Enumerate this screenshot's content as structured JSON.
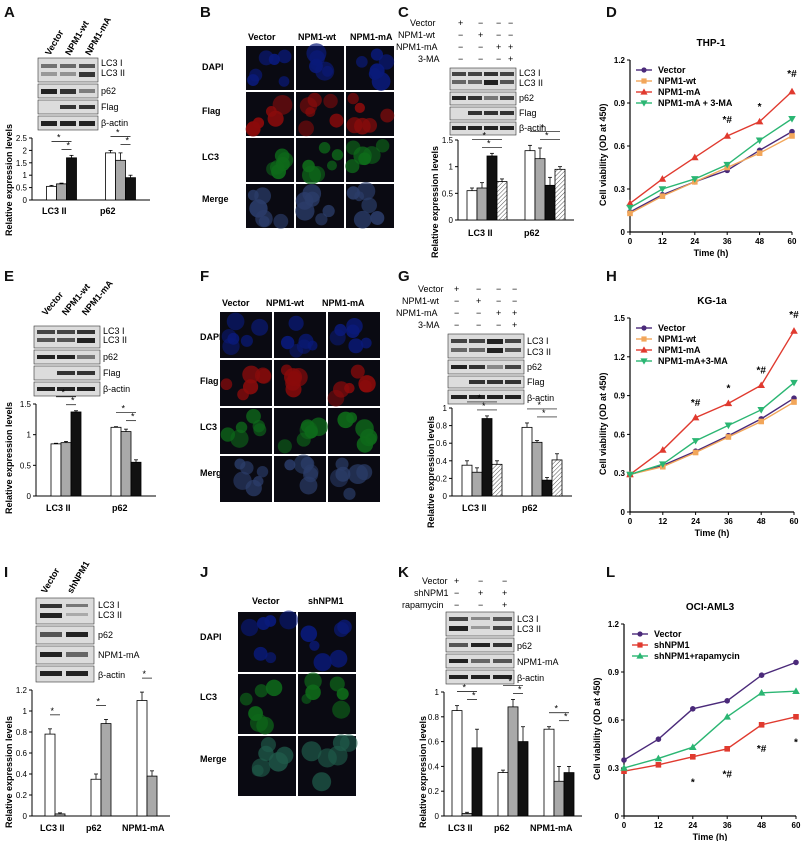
{
  "figure": {
    "panels": {
      "A": {
        "label": "A",
        "lanes": [
          "Vector",
          "NPM1-wt",
          "NPM1-mA"
        ],
        "blots": [
          "LC3 I",
          "LC3 II",
          "p62",
          "Flag",
          "β-actin"
        ],
        "ylabel": "Relative expression levels",
        "groups": [
          "LC3 II",
          "p62"
        ]
      },
      "B": {
        "label": "B",
        "cols": [
          "Vector",
          "NPM1-wt",
          "NPM1-mA"
        ],
        "rows": [
          "DAPI",
          "Flag",
          "LC3",
          "Merge"
        ]
      },
      "C": {
        "label": "C",
        "conds": [
          "Vector",
          "NPM1-wt",
          "NPM1-mA",
          "3-MA"
        ],
        "blots": [
          "LC3 I",
          "LC3 II",
          "p62",
          "Flag",
          "β-actin"
        ],
        "ylabel": "Relative expression levels",
        "groups": [
          "LC3 II",
          "p62"
        ]
      },
      "D": {
        "label": "D"
      },
      "E": {
        "label": "E",
        "lanes": [
          "Vector",
          "NPM1-wt",
          "NPM1-mA"
        ],
        "blots": [
          "LC3 I",
          "LC3 II",
          "p62",
          "Flag",
          "β-actin"
        ],
        "ylabel": "Relative expression levels",
        "groups": [
          "LC3 II",
          "p62"
        ]
      },
      "F": {
        "label": "F",
        "cols": [
          "Vector",
          "NPM1-wt",
          "NPM1-mA"
        ],
        "rows": [
          "DAPI",
          "Flag",
          "LC3",
          "Merge"
        ]
      },
      "G": {
        "label": "G",
        "conds": [
          "Vector",
          "NPM1-wt",
          "NPM1-mA",
          "3-MA"
        ],
        "blots": [
          "LC3 I",
          "LC3 II",
          "p62",
          "Flag",
          "β-actin"
        ],
        "ylabel": "Relative expression levels",
        "groups": [
          "LC3 II",
          "p62"
        ]
      },
      "H": {
        "label": "H"
      },
      "I": {
        "label": "I",
        "lanes": [
          "Vector",
          "shNPM1"
        ],
        "blots": [
          "LC3 I",
          "LC3 II",
          "p62",
          "NPM1-mA",
          "β-actin"
        ],
        "ylabel": "Relative expression levels",
        "groups": [
          "LC3 II",
          "p62",
          "NPM1-mA"
        ]
      },
      "J": {
        "label": "J",
        "cols": [
          "Vector",
          "shNPM1"
        ],
        "rows": [
          "DAPI",
          "LC3",
          "Merge"
        ]
      },
      "K": {
        "label": "K",
        "conds": [
          "Vector",
          "shNPM1",
          "rapamycin"
        ],
        "blots": [
          "LC3 I",
          "LC3 II",
          "p62",
          "NPM1-mA",
          "β-actin"
        ],
        "ylabel": "Relative expression levels",
        "groups": [
          "LC3 II",
          "p62",
          "NPM1-mA"
        ]
      },
      "L": {
        "label": "L"
      }
    },
    "sig": {
      "star": "*",
      "hash": "#",
      "starhash": "*#"
    }
  },
  "chart_data": [
    {
      "id": "A",
      "type": "bar",
      "categories": [
        "LC3 II",
        "p62"
      ],
      "series": [
        {
          "name": "Vector",
          "values": [
            0.55,
            1.9
          ],
          "err": [
            0.04,
            0.1
          ]
        },
        {
          "name": "NPM1-wt",
          "values": [
            0.65,
            1.6
          ],
          "err": [
            0.03,
            0.3
          ]
        },
        {
          "name": "NPM1-mA",
          "values": [
            1.7,
            0.9
          ],
          "err": [
            0.1,
            0.1
          ]
        }
      ],
      "ylabel": "Relative expression levels",
      "ylim": [
        0,
        2.5
      ],
      "yticks": [
        0,
        0.5,
        1,
        1.5,
        2,
        2.5
      ]
    },
    {
      "id": "C",
      "type": "bar",
      "categories": [
        "LC3 II",
        "p62"
      ],
      "series": [
        {
          "name": "Vector",
          "values": [
            0.55,
            1.3
          ],
          "err": [
            0.05,
            0.1
          ]
        },
        {
          "name": "NPM1-wt",
          "values": [
            0.6,
            1.15
          ],
          "err": [
            0.1,
            0.2
          ]
        },
        {
          "name": "NPM1-mA",
          "values": [
            1.2,
            0.65
          ],
          "err": [
            0.05,
            0.15
          ]
        },
        {
          "name": "NPM1-mA + 3-MA",
          "values": [
            0.72,
            0.95
          ],
          "err": [
            0.05,
            0.05
          ]
        }
      ],
      "ylabel": "Relative expression levels",
      "ylim": [
        0,
        1.5
      ],
      "yticks": [
        0,
        0.5,
        1,
        1.5
      ]
    },
    {
      "id": "E",
      "type": "bar",
      "categories": [
        "LC3 II",
        "p62"
      ],
      "series": [
        {
          "name": "Vector",
          "values": [
            0.85,
            1.12
          ],
          "err": [
            0.01,
            0.01
          ]
        },
        {
          "name": "NPM1-wt",
          "values": [
            0.87,
            1.05
          ],
          "err": [
            0.02,
            0.04
          ]
        },
        {
          "name": "NPM1-mA",
          "values": [
            1.37,
            0.55
          ],
          "err": [
            0.02,
            0.04
          ]
        }
      ],
      "ylabel": "Relative expression levels",
      "ylim": [
        0,
        1.5
      ],
      "yticks": [
        0,
        0.5,
        1,
        1.5
      ]
    },
    {
      "id": "G",
      "type": "bar",
      "categories": [
        "LC3 II",
        "p62"
      ],
      "series": [
        {
          "name": "Vector",
          "values": [
            0.35,
            0.78
          ],
          "err": [
            0.05,
            0.05
          ]
        },
        {
          "name": "NPM1-wt",
          "values": [
            0.27,
            0.61
          ],
          "err": [
            0.05,
            0.02
          ]
        },
        {
          "name": "NPM1-mA",
          "values": [
            0.88,
            0.18
          ],
          "err": [
            0.03,
            0.03
          ]
        },
        {
          "name": "NPM1-mA + 3-MA",
          "values": [
            0.36,
            0.41
          ],
          "err": [
            0.04,
            0.07
          ]
        }
      ],
      "ylabel": "Relative expression levels",
      "ylim": [
        0,
        1.0
      ],
      "yticks": [
        0,
        0.2,
        0.4,
        0.6,
        0.8,
        1.0
      ]
    },
    {
      "id": "I",
      "type": "bar",
      "categories": [
        "LC3 II",
        "p62",
        "NPM1-mA"
      ],
      "series": [
        {
          "name": "Vector",
          "values": [
            0.78,
            0.35,
            1.1
          ],
          "err": [
            0.05,
            0.05,
            0.08
          ]
        },
        {
          "name": "shNPM1",
          "values": [
            0.02,
            0.88,
            0.38
          ],
          "err": [
            0.01,
            0.04,
            0.05
          ]
        }
      ],
      "ylabel": "Relative expression levels",
      "ylim": [
        0,
        1.2
      ],
      "yticks": [
        0,
        0.2,
        0.4,
        0.6,
        0.8,
        1.0,
        1.2
      ]
    },
    {
      "id": "K",
      "type": "bar",
      "categories": [
        "LC3 II",
        "p62",
        "NPM1-mA"
      ],
      "series": [
        {
          "name": "Vector",
          "values": [
            0.85,
            0.35,
            0.7
          ],
          "err": [
            0.04,
            0.02,
            0.02
          ]
        },
        {
          "name": "shNPM1",
          "values": [
            0.02,
            0.88,
            0.28
          ],
          "err": [
            0.01,
            0.06,
            0.12
          ]
        },
        {
          "name": "shNPM1 + rapamycin",
          "values": [
            0.55,
            0.6,
            0.35
          ],
          "err": [
            0.15,
            0.12,
            0.05
          ]
        }
      ],
      "ylabel": "Relative expression levels",
      "ylim": [
        0,
        1.0
      ],
      "yticks": [
        0,
        0.2,
        0.4,
        0.6,
        0.8,
        1.0
      ]
    },
    {
      "id": "D",
      "type": "line",
      "title": "THP-1",
      "xlabel": "Time (h)",
      "ylabel": "Cell viability (OD at 450)",
      "x": [
        0,
        12,
        24,
        36,
        48,
        60
      ],
      "xticks": [
        0,
        12,
        24,
        36,
        48,
        60
      ],
      "ylim": [
        0,
        1.2
      ],
      "yticks": [
        0,
        0.3,
        0.6,
        0.9,
        1.2
      ],
      "series": [
        {
          "name": "Vector",
          "color": "#4b2a7a",
          "marker": "circle",
          "values": [
            0.14,
            0.26,
            0.35,
            0.43,
            0.57,
            0.7
          ]
        },
        {
          "name": "NPM1-wt",
          "color": "#f2a65a",
          "marker": "square",
          "values": [
            0.13,
            0.25,
            0.35,
            0.45,
            0.55,
            0.67
          ]
        },
        {
          "name": "NPM1-mA",
          "color": "#e03a2f",
          "marker": "triangle",
          "values": [
            0.2,
            0.37,
            0.52,
            0.67,
            0.77,
            0.98
          ]
        },
        {
          "name": "NPM1-mA + 3-MA",
          "color": "#2bb673",
          "marker": "tri-down",
          "values": [
            0.17,
            0.3,
            0.37,
            0.47,
            0.64,
            0.79
          ]
        }
      ],
      "annotations": [
        {
          "x": 36,
          "y": 0.76,
          "text": "*#"
        },
        {
          "x": 48,
          "y": 0.85,
          "text": "*"
        },
        {
          "x": 60,
          "y": 1.08,
          "text": "*#"
        }
      ]
    },
    {
      "id": "H",
      "type": "line",
      "title": "KG-1a",
      "xlabel": "Time (h)",
      "ylabel": "Cell viability (OD at 450)",
      "x": [
        0,
        12,
        24,
        36,
        48,
        60
      ],
      "xticks": [
        0,
        12,
        24,
        36,
        48,
        60
      ],
      "ylim": [
        0,
        1.5
      ],
      "yticks": [
        0,
        0.3,
        0.6,
        0.9,
        1.2,
        1.5
      ],
      "series": [
        {
          "name": "Vector",
          "color": "#4b2a7a",
          "marker": "circle",
          "values": [
            0.29,
            0.36,
            0.47,
            0.59,
            0.72,
            0.88
          ]
        },
        {
          "name": "NPM1-wt",
          "color": "#f2a65a",
          "marker": "square",
          "values": [
            0.29,
            0.35,
            0.46,
            0.58,
            0.7,
            0.85
          ]
        },
        {
          "name": "NPM1-mA",
          "color": "#e03a2f",
          "marker": "triangle",
          "values": [
            0.29,
            0.48,
            0.73,
            0.84,
            0.98,
            1.4
          ]
        },
        {
          "name": "NPM1-mA+3-MA",
          "color": "#2bb673",
          "marker": "tri-down",
          "values": [
            0.29,
            0.37,
            0.55,
            0.67,
            0.79,
            1.0
          ]
        }
      ],
      "annotations": [
        {
          "x": 24,
          "y": 0.82,
          "text": "*#"
        },
        {
          "x": 36,
          "y": 0.93,
          "text": "*"
        },
        {
          "x": 48,
          "y": 1.07,
          "text": "*#"
        },
        {
          "x": 60,
          "y": 1.5,
          "text": "*#"
        }
      ]
    },
    {
      "id": "L",
      "type": "line",
      "title": "OCI-AML3",
      "xlabel": "Time (h)",
      "ylabel": "Cell viability (OD at 450)",
      "x": [
        0,
        12,
        24,
        36,
        48,
        60
      ],
      "xticks": [
        0,
        12,
        24,
        36,
        48,
        60
      ],
      "ylim": [
        0,
        1.2
      ],
      "yticks": [
        0,
        0.3,
        0.6,
        0.9,
        1.2
      ],
      "series": [
        {
          "name": "Vector",
          "color": "#4b2a7a",
          "marker": "circle",
          "values": [
            0.35,
            0.48,
            0.67,
            0.72,
            0.88,
            0.96
          ]
        },
        {
          "name": "shNPM1",
          "color": "#e03a2f",
          "marker": "square",
          "values": [
            0.28,
            0.32,
            0.37,
            0.42,
            0.57,
            0.62
          ]
        },
        {
          "name": "shNPM1+rapamycin",
          "color": "#2bb673",
          "marker": "triangle",
          "values": [
            0.3,
            0.36,
            0.43,
            0.62,
            0.77,
            0.78
          ]
        }
      ],
      "annotations": [
        {
          "x": 24,
          "y": 0.19,
          "text": "*"
        },
        {
          "x": 36,
          "y": 0.24,
          "text": "*#"
        },
        {
          "x": 48,
          "y": 0.4,
          "text": "*#"
        },
        {
          "x": 60,
          "y": 0.44,
          "text": "*"
        }
      ]
    }
  ]
}
